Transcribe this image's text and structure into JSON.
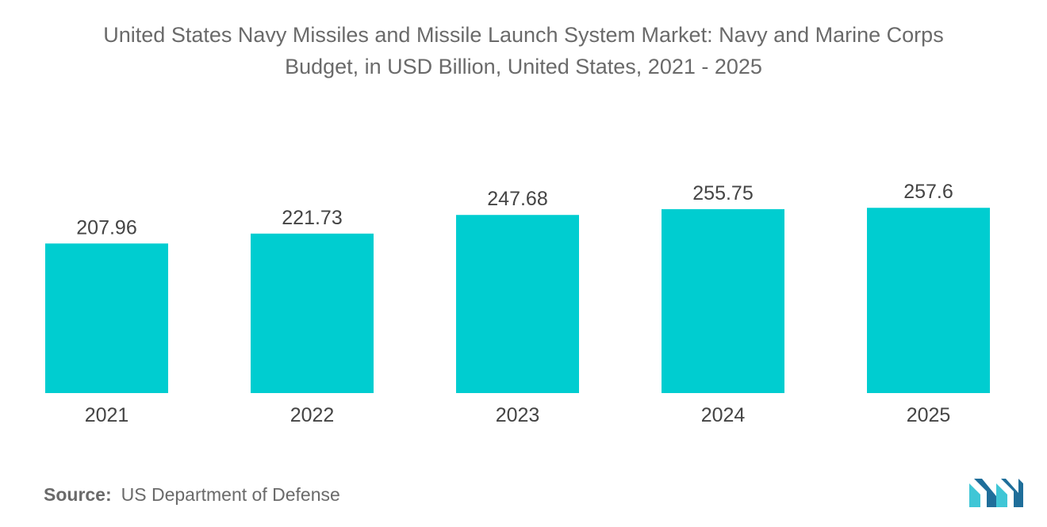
{
  "title": {
    "line1": "United States Navy Missiles and Missile Launch System Market: Navy and Marine Corps",
    "line2": "Budget, in USD Billion, United States, 2021 - 2025"
  },
  "source": {
    "label": "Source:",
    "text": "US Department of Defense"
  },
  "logo": {
    "icon": "mordor-intelligence-logo-icon"
  },
  "colors": {
    "bar": "#00CDD0",
    "text": "#444444",
    "muted": "#6a6a6a",
    "logo_dark": "#1f6e9a",
    "logo_light": "#3fc6d6"
  },
  "chart_data": {
    "type": "bar",
    "title": "United States Navy Missiles and Missile Launch System Market: Navy and Marine Corps Budget, in USD Billion, United States, 2021 - 2025",
    "categories": [
      "2021",
      "2022",
      "2023",
      "2024",
      "2025"
    ],
    "values": [
      207.96,
      221.73,
      247.68,
      255.75,
      257.6
    ],
    "value_labels": [
      "207.96",
      "221.73",
      "247.68",
      "255.75",
      "257.6"
    ],
    "xlabel": "",
    "ylabel": "",
    "ylim": [
      0,
      300
    ],
    "grid": false,
    "legend": "none"
  }
}
